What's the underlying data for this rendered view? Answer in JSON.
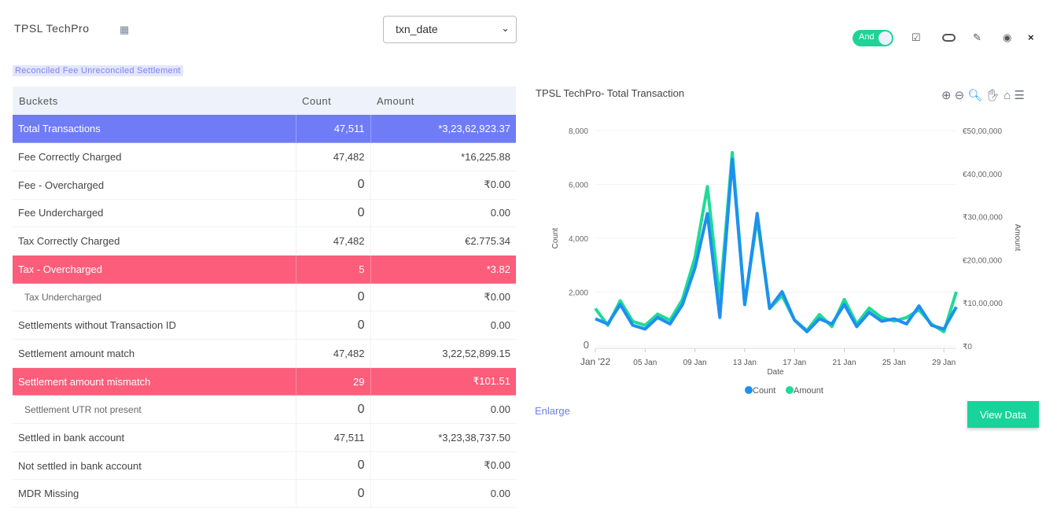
{
  "header": {
    "title": "TPSL TechPro",
    "grid_icon": "grid-icon",
    "tabs_label": "Reconciled Fee Unreconciled Settlement",
    "select_value": "txn_date",
    "toggle_label": "And",
    "toolbar_icons": [
      "checkbox-icon",
      "oval-icon",
      "pencil-icon",
      "eye-icon",
      "close-icon"
    ]
  },
  "table": {
    "columns": [
      "Buckets",
      "Count",
      "Amount"
    ],
    "rows": [
      {
        "bucket": "Total Transactions",
        "count": "47,511",
        "amount": "*3,23,62,923.37",
        "style": "blue"
      },
      {
        "bucket": "Fee Correctly Charged",
        "count": "47,482",
        "amount": "*16,225.88"
      },
      {
        "bucket": "Fee - Overcharged",
        "count": "0",
        "amount": "₹0.00"
      },
      {
        "bucket": "Fee Undercharged",
        "count": "0",
        "amount": "0.00"
      },
      {
        "bucket": "Tax Correctly Charged",
        "count": "47,482",
        "amount": "€2.775.34"
      },
      {
        "bucket": "Tax - Overcharged",
        "count": "5",
        "amount": "*3.82",
        "style": "red"
      },
      {
        "bucket": "Tax Undercharged",
        "count": "0",
        "amount": "₹0.00",
        "sub": true
      },
      {
        "bucket": "Settlements without Transaction ID",
        "count": "0",
        "amount": "0.00"
      },
      {
        "bucket": "Settlement amount match",
        "count": "47,482",
        "amount": "3,22,52,899.15"
      },
      {
        "bucket": "Settlement amount mismatch",
        "count": "29",
        "amount": "₹101.51",
        "style": "red"
      },
      {
        "bucket": "Settlement UTR not present",
        "count": "0",
        "amount": "0.00",
        "sub": true
      },
      {
        "bucket": "Settled in bank account",
        "count": "47,511",
        "amount": "*3,23,38,737.50"
      },
      {
        "bucket": "Not settled in bank account",
        "count": "0",
        "amount": "₹0.00"
      },
      {
        "bucket": "MDR Missing",
        "count": "0",
        "amount": "0.00"
      }
    ]
  },
  "chart": {
    "title": "TPSL TechPro- Total Transaction",
    "toolbar_icons": [
      "zoom-in-icon",
      "zoom-out-icon",
      "zoom-select-icon",
      "pan-icon",
      "home-icon",
      "menu-icon"
    ],
    "enlarge": "Enlarge",
    "view_data": "View Data"
  },
  "chart_data": {
    "type": "line",
    "xlabel": "Date",
    "ylabel": "Count",
    "y2label": "Amount",
    "x": [
      "2022-01-01",
      "2022-01-02",
      "2022-01-03",
      "2022-01-04",
      "2022-01-05",
      "2022-01-06",
      "2022-01-07",
      "2022-01-08",
      "2022-01-09",
      "2022-01-10",
      "2022-01-11",
      "2022-01-12",
      "2022-01-13",
      "2022-01-14",
      "2022-01-15",
      "2022-01-16",
      "2022-01-17",
      "2022-01-18",
      "2022-01-19",
      "2022-01-20",
      "2022-01-21",
      "2022-01-22",
      "2022-01-23",
      "2022-01-24",
      "2022-01-25",
      "2022-01-26",
      "2022-01-27",
      "2022-01-28",
      "2022-01-29",
      "2022-01-30"
    ],
    "x_ticks": [
      "Jan '22",
      "05 Jan",
      "09 Jan",
      "13 Jan",
      "17 Jan",
      "21 Jan",
      "25 Jan",
      "29 Jan"
    ],
    "ylim": [
      0,
      8000
    ],
    "y_ticks": [
      "0",
      "2,000",
      "4,000",
      "6,000",
      "8,000"
    ],
    "y2lim": [
      0,
      5000000
    ],
    "y2_ticks": [
      "₹0",
      "₹10,00,000",
      "€20,00,000",
      "₹30,00,000",
      "€40,00,000",
      "€50,00,000"
    ],
    "series": [
      {
        "name": "Count",
        "axis": "left",
        "color": "#1e90f0",
        "values": [
          1010,
          820,
          1540,
          770,
          630,
          1060,
          820,
          1540,
          2890,
          4920,
          1060,
          6940,
          1540,
          4920,
          1400,
          2020,
          960,
          530,
          1010,
          820,
          1540,
          720,
          1250,
          920,
          1010,
          820,
          1490,
          770,
          630,
          1450
        ]
      },
      {
        "name": "Amount",
        "axis": "right",
        "color": "#1edb96",
        "values": [
          870000,
          480000,
          1050000,
          570000,
          480000,
          740000,
          600000,
          1080000,
          2050000,
          3700000,
          1080000,
          4490000,
          960000,
          2950000,
          870000,
          1170000,
          600000,
          360000,
          730000,
          450000,
          1080000,
          510000,
          880000,
          660000,
          580000,
          660000,
          840000,
          510000,
          330000,
          1260000
        ]
      }
    ],
    "legend": "bottom",
    "grid": true
  }
}
